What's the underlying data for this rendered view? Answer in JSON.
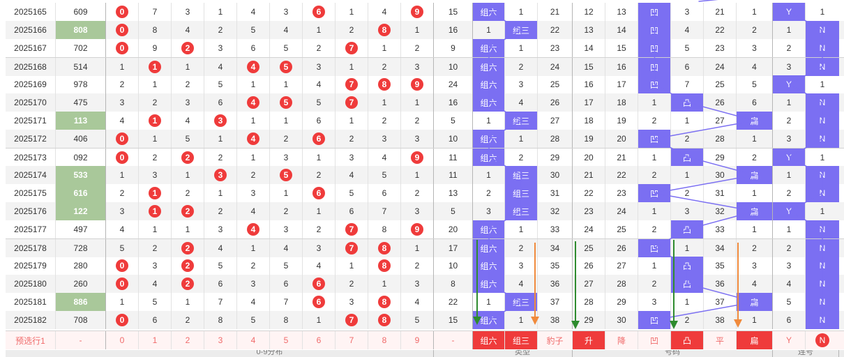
{
  "colors": {
    "red": "#ef3b3b",
    "purple": "#7b6ff2",
    "green_sum": "#a9c89a",
    "orange_arrow": "#f08a3c",
    "green_arrow": "#2e8b2e"
  },
  "rows": [
    {
      "issue": "2025165",
      "num": "609",
      "hl": false,
      "dist": [
        "0",
        "7",
        "3",
        "1",
        "4",
        "3",
        "6",
        "1",
        "4",
        "9"
      ],
      "circ": [
        0,
        6,
        9
      ],
      "span": "15",
      "type": {
        "zl": "组六",
        "zs": "1",
        "bz": "21"
      },
      "ts": {
        "s": "12",
        "j": "13",
        "a": "凹",
        "t": "3",
        "p": "21",
        "b": "1"
      },
      "y": "Y",
      "n": "1"
    },
    {
      "issue": "2025166",
      "num": "808",
      "hl": true,
      "dist": [
        "0",
        "8",
        "4",
        "2",
        "5",
        "4",
        "1",
        "2",
        "8",
        "1"
      ],
      "circ": [
        0,
        8
      ],
      "span": "16",
      "type": {
        "zl": "1",
        "zs": "组三",
        "bz": "22"
      },
      "ts": {
        "s": "13",
        "j": "14",
        "a": "凹",
        "t": "4",
        "p": "22",
        "b": "2"
      },
      "y": "1",
      "n": "N"
    },
    {
      "issue": "2025167",
      "num": "702",
      "hl": false,
      "dist": [
        "0",
        "9",
        "2",
        "3",
        "6",
        "5",
        "2",
        "7",
        "1",
        "2"
      ],
      "circ": [
        0,
        2,
        7
      ],
      "span": "9",
      "type": {
        "zl": "组六",
        "zs": "1",
        "bz": "23"
      },
      "ts": {
        "s": "14",
        "j": "15",
        "a": "凹",
        "t": "5",
        "p": "23",
        "b": "3"
      },
      "y": "2",
      "n": "N"
    },
    {
      "issue": "2025168",
      "num": "514",
      "hl": false,
      "dist": [
        "1",
        "1",
        "1",
        "4",
        "4",
        "5",
        "3",
        "1",
        "2",
        "3"
      ],
      "circ": [
        1,
        4,
        5
      ],
      "span": "10",
      "type": {
        "zl": "组六",
        "zs": "2",
        "bz": "24"
      },
      "ts": {
        "s": "15",
        "j": "16",
        "a": "凹",
        "t": "6",
        "p": "24",
        "b": "4"
      },
      "y": "3",
      "n": "N"
    },
    {
      "issue": "2025169",
      "num": "978",
      "hl": false,
      "dist": [
        "2",
        "1",
        "2",
        "5",
        "1",
        "1",
        "4",
        "7",
        "8",
        "9"
      ],
      "circ": [
        7,
        8,
        9
      ],
      "span": "24",
      "type": {
        "zl": "组六",
        "zs": "3",
        "bz": "25"
      },
      "ts": {
        "s": "16",
        "j": "17",
        "a": "凹",
        "t": "7",
        "p": "25",
        "b": "5"
      },
      "y": "Y",
      "n": "1"
    },
    {
      "issue": "2025170",
      "num": "475",
      "hl": false,
      "dist": [
        "3",
        "2",
        "3",
        "6",
        "4",
        "5",
        "5",
        "7",
        "1",
        "1"
      ],
      "circ": [
        4,
        5,
        7
      ],
      "span": "16",
      "type": {
        "zl": "组六",
        "zs": "4",
        "bz": "26"
      },
      "ts": {
        "s": "17",
        "j": "18",
        "a": "1",
        "t": "凸",
        "p": "26",
        "b": "6"
      },
      "y": "1",
      "n": "N"
    },
    {
      "issue": "2025171",
      "num": "113",
      "hl": true,
      "dist": [
        "4",
        "1",
        "4",
        "3",
        "1",
        "1",
        "6",
        "1",
        "2",
        "2"
      ],
      "circ": [
        1,
        3
      ],
      "span": "5",
      "type": {
        "zl": "1",
        "zs": "组三",
        "bz": "27"
      },
      "ts": {
        "s": "18",
        "j": "19",
        "a": "2",
        "t": "1",
        "p": "27",
        "b": "扁"
      },
      "y": "2",
      "n": "N"
    },
    {
      "issue": "2025172",
      "num": "406",
      "hl": false,
      "dist": [
        "0",
        "1",
        "5",
        "1",
        "4",
        "2",
        "6",
        "2",
        "3",
        "3"
      ],
      "circ": [
        0,
        4,
        6
      ],
      "span": "10",
      "type": {
        "zl": "组六",
        "zs": "1",
        "bz": "28"
      },
      "ts": {
        "s": "19",
        "j": "20",
        "a": "凹",
        "t": "2",
        "p": "28",
        "b": "1"
      },
      "y": "3",
      "n": "N"
    },
    {
      "issue": "2025173",
      "num": "092",
      "hl": false,
      "dist": [
        "0",
        "2",
        "2",
        "2",
        "1",
        "3",
        "1",
        "3",
        "4",
        "9"
      ],
      "circ": [
        0,
        2,
        9
      ],
      "span": "11",
      "type": {
        "zl": "组六",
        "zs": "2",
        "bz": "29"
      },
      "ts": {
        "s": "20",
        "j": "21",
        "a": "1",
        "t": "凸",
        "p": "29",
        "b": "2"
      },
      "y": "Y",
      "n": "1"
    },
    {
      "issue": "2025174",
      "num": "533",
      "hl": true,
      "dist": [
        "1",
        "3",
        "1",
        "3",
        "2",
        "5",
        "2",
        "4",
        "5",
        "1"
      ],
      "circ": [
        3,
        5
      ],
      "span": "11",
      "type": {
        "zl": "1",
        "zs": "组三",
        "bz": "30"
      },
      "ts": {
        "s": "21",
        "j": "22",
        "a": "2",
        "t": "1",
        "p": "30",
        "b": "扁"
      },
      "y": "1",
      "n": "N"
    },
    {
      "issue": "2025175",
      "num": "616",
      "hl": true,
      "dist": [
        "2",
        "1",
        "2",
        "1",
        "3",
        "1",
        "6",
        "5",
        "6",
        "2"
      ],
      "circ": [
        1,
        6
      ],
      "span": "13",
      "type": {
        "zl": "2",
        "zs": "组三",
        "bz": "31"
      },
      "ts": {
        "s": "22",
        "j": "23",
        "a": "凹",
        "t": "2",
        "p": "31",
        "b": "1"
      },
      "y": "2",
      "n": "N"
    },
    {
      "issue": "2025176",
      "num": "122",
      "hl": true,
      "dist": [
        "3",
        "1",
        "2",
        "2",
        "4",
        "2",
        "1",
        "6",
        "7",
        "3"
      ],
      "circ": [
        1,
        2
      ],
      "span": "5",
      "type": {
        "zl": "3",
        "zs": "组三",
        "bz": "32"
      },
      "ts": {
        "s": "23",
        "j": "24",
        "a": "1",
        "t": "3",
        "p": "32",
        "b": "扁"
      },
      "y": "Y",
      "n": "1"
    },
    {
      "issue": "2025177",
      "num": "497",
      "hl": false,
      "dist": [
        "4",
        "1",
        "1",
        "3",
        "4",
        "3",
        "2",
        "7",
        "8",
        "9"
      ],
      "circ": [
        4,
        7,
        9
      ],
      "span": "20",
      "type": {
        "zl": "组六",
        "zs": "1",
        "bz": "33"
      },
      "ts": {
        "s": "24",
        "j": "25",
        "a": "2",
        "t": "凸",
        "p": "33",
        "b": "1"
      },
      "y": "1",
      "n": "N"
    },
    {
      "issue": "2025178",
      "num": "728",
      "hl": false,
      "dist": [
        "5",
        "2",
        "2",
        "4",
        "1",
        "4",
        "3",
        "7",
        "8",
        "1"
      ],
      "circ": [
        2,
        7,
        8
      ],
      "span": "17",
      "type": {
        "zl": "组六",
        "zs": "2",
        "bz": "34"
      },
      "ts": {
        "s": "25",
        "j": "26",
        "a": "凹",
        "t": "1",
        "p": "34",
        "b": "2"
      },
      "y": "2",
      "n": "N"
    },
    {
      "issue": "2025179",
      "num": "280",
      "hl": false,
      "dist": [
        "0",
        "3",
        "2",
        "5",
        "2",
        "5",
        "4",
        "1",
        "8",
        "2"
      ],
      "circ": [
        0,
        2,
        8
      ],
      "span": "10",
      "type": {
        "zl": "组六",
        "zs": "3",
        "bz": "35"
      },
      "ts": {
        "s": "26",
        "j": "27",
        "a": "1",
        "t": "凸",
        "p": "35",
        "b": "3"
      },
      "y": "3",
      "n": "N"
    },
    {
      "issue": "2025180",
      "num": "260",
      "hl": false,
      "dist": [
        "0",
        "4",
        "2",
        "6",
        "3",
        "6",
        "6",
        "2",
        "1",
        "3"
      ],
      "circ": [
        0,
        2,
        6
      ],
      "span": "8",
      "type": {
        "zl": "组六",
        "zs": "4",
        "bz": "36"
      },
      "ts": {
        "s": "27",
        "j": "28",
        "a": "2",
        "t": "凸",
        "p": "36",
        "b": "4"
      },
      "y": "4",
      "n": "N"
    },
    {
      "issue": "2025181",
      "num": "886",
      "hl": true,
      "dist": [
        "1",
        "5",
        "1",
        "7",
        "4",
        "7",
        "6",
        "3",
        "8",
        "4"
      ],
      "circ": [
        6,
        8
      ],
      "span": "22",
      "type": {
        "zl": "1",
        "zs": "组三",
        "bz": "37"
      },
      "ts": {
        "s": "28",
        "j": "29",
        "a": "3",
        "t": "1",
        "p": "37",
        "b": "扁"
      },
      "y": "5",
      "n": "N"
    },
    {
      "issue": "2025182",
      "num": "708",
      "hl": false,
      "dist": [
        "0",
        "6",
        "2",
        "8",
        "5",
        "8",
        "1",
        "7",
        "8",
        "5"
      ],
      "circ": [
        0,
        7,
        8
      ],
      "span": "15",
      "type": {
        "zl": "组六",
        "zs": "1",
        "bz": "38"
      },
      "ts": {
        "s": "29",
        "j": "30",
        "a": "凹",
        "t": "2",
        "p": "38",
        "b": "1"
      },
      "y": "6",
      "n": "N"
    }
  ],
  "preselect": {
    "label": "预选行1",
    "num": "-",
    "dist": [
      "0",
      "1",
      "2",
      "3",
      "4",
      "5",
      "6",
      "7",
      "8",
      "9"
    ],
    "span": "-",
    "zl": "组六",
    "zs": "组三",
    "bz": "豹子",
    "s": "升",
    "j": "降",
    "a": "凹",
    "t": "凸",
    "p": "平",
    "b": "扁",
    "y": "Y",
    "n": "N"
  },
  "footer": {
    "dist": "0-9分布",
    "type": "类型",
    "ts": "号码",
    "zp": "连号"
  }
}
